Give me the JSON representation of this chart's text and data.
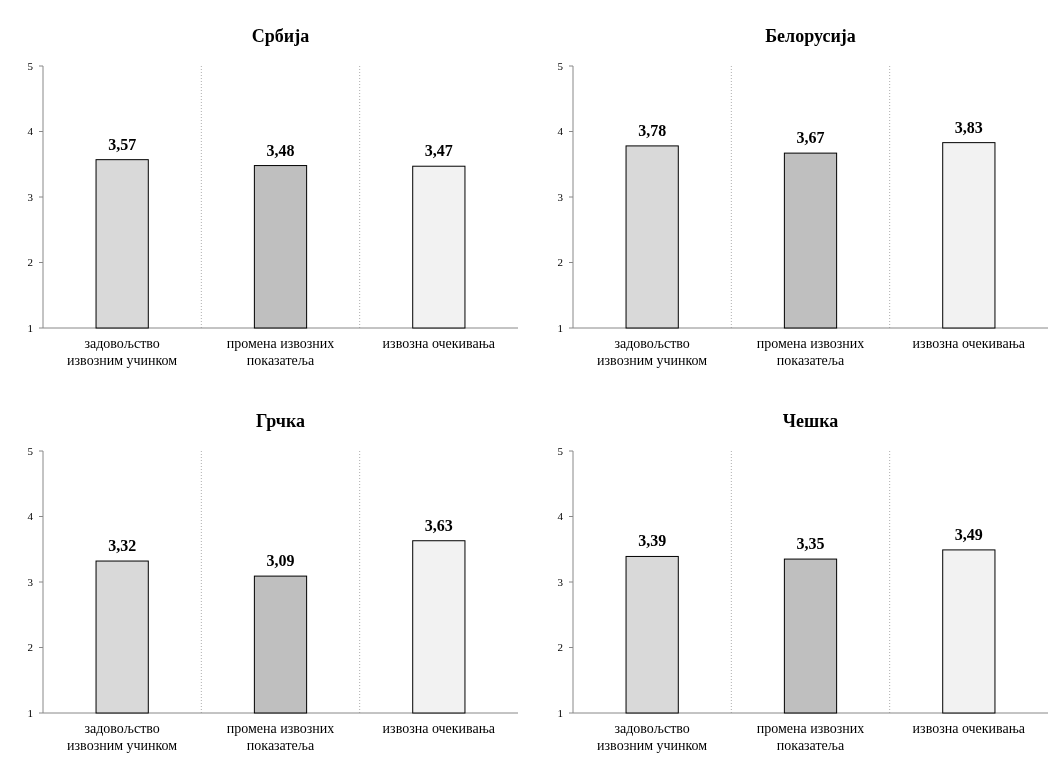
{
  "chart_data": [
    {
      "type": "bar",
      "title": "Србија",
      "categories": [
        "задовољство извозним учинком",
        "промена извозних показатеља",
        "извозна очекивања"
      ],
      "values": [
        3.57,
        3.48,
        3.47
      ],
      "colors": [
        "#d9d9d9",
        "#bfbfbf",
        "#f2f2f2"
      ],
      "ylim": [
        1,
        5
      ],
      "yticks": [
        1,
        2,
        3,
        4,
        5
      ],
      "value_labels": [
        "3,57",
        "3,48",
        "3,47"
      ],
      "grid": "x"
    },
    {
      "type": "bar",
      "title": "Белорусија",
      "categories": [
        "задовољство извозним учинком",
        "промена извозних показатеља",
        "извозна очекивања"
      ],
      "values": [
        3.78,
        3.67,
        3.83
      ],
      "colors": [
        "#d9d9d9",
        "#bfbfbf",
        "#f2f2f2"
      ],
      "ylim": [
        1,
        5
      ],
      "yticks": [
        1,
        2,
        3,
        4,
        5
      ],
      "value_labels": [
        "3,78",
        "3,67",
        "3,83"
      ],
      "grid": "x"
    },
    {
      "type": "bar",
      "title": "Грчка",
      "categories": [
        "задовољство извозним учинком",
        "промена извозних показатеља",
        "извозна очекивања"
      ],
      "values": [
        3.32,
        3.09,
        3.63
      ],
      "colors": [
        "#d9d9d9",
        "#bfbfbf",
        "#f2f2f2"
      ],
      "ylim": [
        1,
        5
      ],
      "yticks": [
        1,
        2,
        3,
        4,
        5
      ],
      "value_labels": [
        "3,32",
        "3,09",
        "3,63"
      ],
      "grid": "x"
    },
    {
      "type": "bar",
      "title": "Чешка",
      "categories": [
        "задовољство извозним учинком",
        "промена извозних показатеља",
        "извозна очекивања"
      ],
      "values": [
        3.39,
        3.35,
        3.49
      ],
      "colors": [
        "#d9d9d9",
        "#bfbfbf",
        "#f2f2f2"
      ],
      "ylim": [
        1,
        5
      ],
      "yticks": [
        1,
        2,
        3,
        4,
        5
      ],
      "value_labels": [
        "3,39",
        "3,35",
        "3,49"
      ],
      "grid": "x"
    }
  ]
}
